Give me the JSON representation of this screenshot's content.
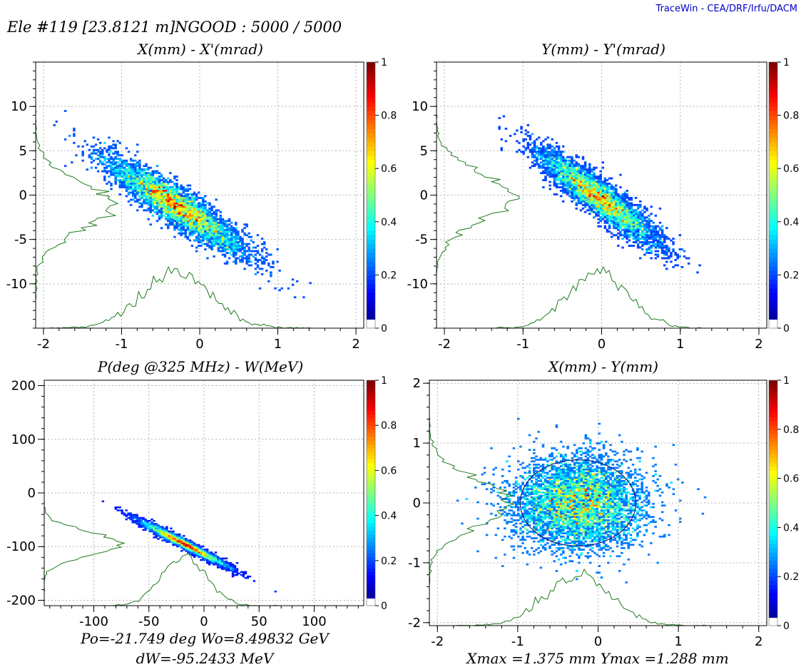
{
  "header": {
    "element": "Ele #119 [23.8121 m]",
    "ngood": "NGOOD : 5000 / 5000",
    "brand": "TraceWin - CEA/DRF/Irfu/DACM"
  },
  "colors": {
    "grid": "#b4b4b4",
    "profile": "#1e7a1e",
    "ellipse": "#1a1a7a",
    "axis": "#000000"
  },
  "colorbar": {
    "ticks": [
      "1",
      "0.8",
      "0.6",
      "0.4",
      "0.2",
      "0"
    ]
  },
  "footers": {
    "phase": {
      "line1": "Po=-21.749 deg  Wo=8.49832 GeV",
      "line2": "dW=-95.2433 MeV"
    },
    "xy": {
      "line1": "Xmax =1.375 mm  Ymax =1.288 mm"
    }
  },
  "chart_data": [
    {
      "id": "xxp",
      "type": "heatmap",
      "title": "X(mm) - X'(mrad)",
      "xlabel": "X (mm)",
      "ylabel": "X' (mrad)",
      "xlim": [
        -2.1,
        2.1
      ],
      "ylim": [
        -15,
        15
      ],
      "xticks": [
        -2,
        -1,
        0,
        1,
        2
      ],
      "yticks": [
        -10,
        -5,
        0,
        5,
        10
      ],
      "xtick_labels": [
        "-2",
        "-1",
        "0",
        "1",
        "2"
      ],
      "ytick_labels": [
        "-10",
        "-5",
        "0",
        "5",
        "10"
      ],
      "distribution": {
        "center_x": -0.3,
        "center_y": -1.2,
        "sigma_u": 0.45,
        "sigma_v": 0.065,
        "slope": -5.5
      },
      "particles": 5000,
      "has_ellipse": false,
      "colorbar_range": [
        0,
        1
      ]
    },
    {
      "id": "yyp",
      "type": "heatmap",
      "title": "Y(mm) - Y'(mrad)",
      "xlabel": "Y (mm)",
      "ylabel": "Y' (mrad)",
      "xlim": [
        -2.1,
        2.1
      ],
      "ylim": [
        -15,
        15
      ],
      "xticks": [
        -2,
        -1,
        0,
        1,
        2
      ],
      "yticks": [
        -10,
        -5,
        0,
        5,
        10
      ],
      "xtick_labels": [
        "-2",
        "-1",
        "0",
        "1",
        "2"
      ],
      "ytick_labels": [
        "-10",
        "-5",
        "0",
        "5",
        "10"
      ],
      "distribution": {
        "center_x": -0.05,
        "center_y": -0.2,
        "sigma_u": 0.38,
        "sigma_v": 0.055,
        "slope": -6.4
      },
      "particles": 5000,
      "has_ellipse": false,
      "colorbar_range": [
        0,
        1
      ]
    },
    {
      "id": "phw",
      "type": "heatmap",
      "title": "P(deg @325 MHz) - W(MeV)",
      "xlabel": "Phase (deg)",
      "ylabel": "W (MeV)",
      "xlim": [
        -145,
        145
      ],
      "ylim": [
        -210,
        210
      ],
      "xticks": [
        -100,
        -50,
        0,
        50,
        100
      ],
      "yticks": [
        -200,
        -100,
        0,
        100,
        200
      ],
      "xtick_labels": [
        "-100",
        "-50",
        "0",
        "50",
        "100"
      ],
      "ytick_labels": [
        "-200",
        "-100",
        "0",
        "100",
        "200"
      ],
      "distribution": {
        "center_x": -18,
        "center_y": -95,
        "sigma_u": 20,
        "sigma_v": 1.4,
        "slope": -1.05
      },
      "particles": 5000,
      "has_ellipse": false,
      "colorbar_range": [
        0,
        1
      ]
    },
    {
      "id": "xy",
      "type": "heatmap",
      "title": "X(mm) - Y(mm)",
      "xlabel": "X (mm)",
      "ylabel": "Y (mm)",
      "xlim": [
        -2.1,
        2.1
      ],
      "ylim": [
        -2.05,
        2.05
      ],
      "xticks": [
        -2,
        -1,
        0,
        1,
        2
      ],
      "yticks": [
        -2,
        -1,
        0,
        1,
        2
      ],
      "xtick_labels": [
        "-2",
        "-1",
        "0",
        "1",
        "2"
      ],
      "ytick_labels": [
        "-2",
        "-1",
        "0",
        "1",
        "2"
      ],
      "distribution": {
        "center_x": -0.25,
        "center_y": 0.0,
        "sigma_u": 0.4,
        "sigma_v": 0.32,
        "slope": 0
      },
      "particles": 5000,
      "has_ellipse": true,
      "ellipse": {
        "cx": -0.25,
        "cy": 0.0,
        "rx": 0.72,
        "ry": 0.72
      },
      "colorbar_range": [
        0,
        1
      ]
    }
  ]
}
